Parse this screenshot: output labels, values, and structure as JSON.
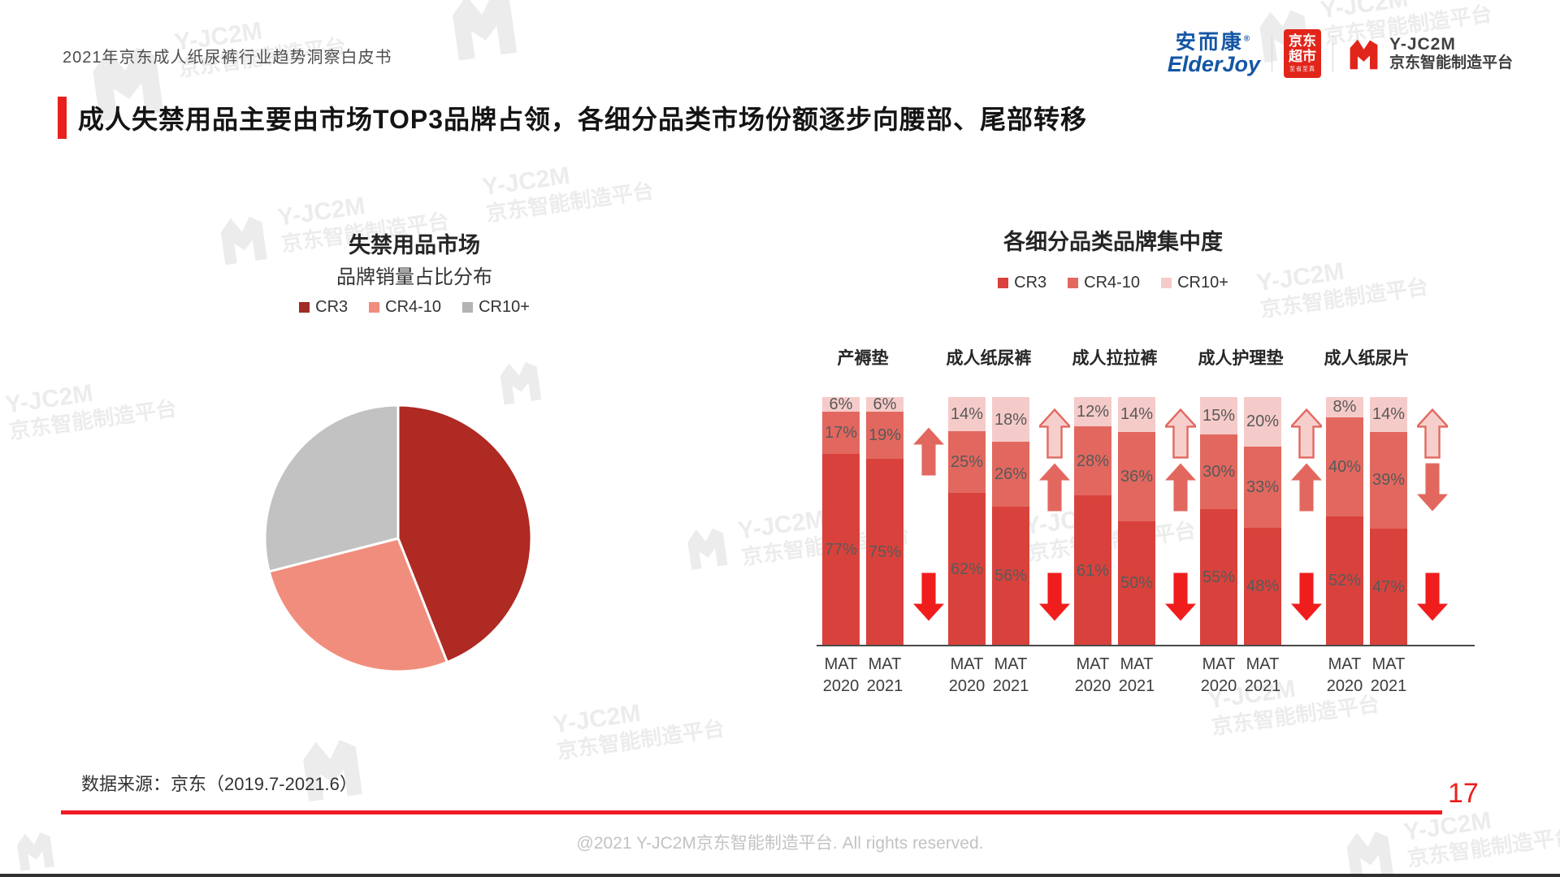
{
  "page": {
    "header_note": "2021年京东成人纸尿裤行业趋势洞察白皮书",
    "title": "成人失禁用品主要由市场TOP3品牌占领，各细分品类市场份额逐步向腰部、尾部转移",
    "source_note": "数据来源：京东（2019.7-2021.6）",
    "page_number": "17",
    "footer": "@2021 Y-JC2M京东智能制造平台. All rights reserved."
  },
  "logos": {
    "elderjoy": {
      "cn": "安而康",
      "reg": "®",
      "en": "ElderJoy",
      "color": "#1456A4"
    },
    "jd_supermarket": {
      "line1": "京东",
      "line2": "超市",
      "tagline": "至省至真",
      "bg": "#E1251B"
    },
    "yjc2m": {
      "name": "Y-JC2M",
      "subtitle": "京东智能制造平台",
      "mark_color": "#E1251B"
    }
  },
  "watermark": {
    "brand": "Y-JC2M",
    "subtitle": "京东智能制造平台"
  },
  "colors": {
    "accent_red": "#E8211D",
    "bright_red": "#F01D1D",
    "arrow_mid": "#E2685F",
    "arrow_outline_fill": "#F6CFCD",
    "axis": "#4a4a4a",
    "bar_label_text": "#595959"
  },
  "chart_data": [
    {
      "id": "incontinence-market-share-pie",
      "type": "pie",
      "title": "失禁用品市场",
      "subtitle": "品牌销量占比分布",
      "legend": [
        "CR3",
        "CR4-10",
        "CR10+"
      ],
      "legend_position": "top",
      "labels": [
        "CR3",
        "CR4-10",
        "CR10+"
      ],
      "values": [
        44,
        27,
        29
      ],
      "colors": [
        "#AE2A23",
        "#F18D7D",
        "#C2C2C2"
      ],
      "legend_colors": [
        "#A02C26",
        "#F18D7D",
        "#B3B3B3"
      ],
      "start_angle_deg": 0,
      "data_labels_shown": false
    },
    {
      "id": "brand-concentration-by-subcategory",
      "type": "bar",
      "stacked": true,
      "title": "各细分品类品牌集中度",
      "legend": [
        "CR3",
        "CR4-10",
        "CR10+"
      ],
      "legend_position": "top",
      "series_order_bottom_to_top": [
        "CR3",
        "CR4-10",
        "CR10+"
      ],
      "series_colors": {
        "CR3": "#D9423C",
        "CR4-10": "#E2685F",
        "CR10+": "#F5CBC9"
      },
      "unit": "%",
      "ylim": [
        0,
        100
      ],
      "grid": false,
      "categories": [
        "产褥垫",
        "成人纸尿裤",
        "成人拉拉裤",
        "成人护理垫",
        "成人纸尿片"
      ],
      "bar_label_lines": [
        [
          "MAT",
          "2020"
        ],
        [
          "MAT",
          "2021"
        ]
      ],
      "groups": [
        {
          "category": "产褥垫",
          "bars": [
            {
              "label": "MAT 2020",
              "CR3": 77,
              "CR4-10": 17,
              "CR10+": 6
            },
            {
              "label": "MAT 2021",
              "CR3": 75,
              "CR4-10": 19,
              "CR10+": 6
            }
          ],
          "arrows": {
            "top": null,
            "middle": "up",
            "bottom": "down"
          }
        },
        {
          "category": "成人纸尿裤",
          "bars": [
            {
              "label": "MAT 2020",
              "CR3": 62,
              "CR4-10": 25,
              "CR10+": 14
            },
            {
              "label": "MAT 2021",
              "CR3": 56,
              "CR4-10": 26,
              "CR10+": 18
            }
          ],
          "arrows": {
            "top": "up-outline",
            "middle": "up",
            "bottom": "down"
          }
        },
        {
          "category": "成人拉拉裤",
          "bars": [
            {
              "label": "MAT 2020",
              "CR3": 61,
              "CR4-10": 28,
              "CR10+": 12
            },
            {
              "label": "MAT 2021",
              "CR3": 50,
              "CR4-10": 36,
              "CR10+": 14
            }
          ],
          "arrows": {
            "top": "up-outline",
            "middle": "up",
            "bottom": "down"
          }
        },
        {
          "category": "成人护理垫",
          "bars": [
            {
              "label": "MAT 2020",
              "CR3": 55,
              "CR4-10": 30,
              "CR10+": 15
            },
            {
              "label": "MAT 2021",
              "CR3": 48,
              "CR4-10": 33,
              "CR10+": 20
            }
          ],
          "arrows": {
            "top": "up-outline",
            "middle": "up",
            "bottom": "down"
          }
        },
        {
          "category": "成人纸尿片",
          "bars": [
            {
              "label": "MAT 2020",
              "CR3": 52,
              "CR4-10": 40,
              "CR10+": 8
            },
            {
              "label": "MAT 2021",
              "CR3": 47,
              "CR4-10": 39,
              "CR10+": 14
            }
          ],
          "arrows": {
            "top": "up-outline",
            "middle": "down",
            "bottom": "down"
          }
        }
      ]
    }
  ]
}
